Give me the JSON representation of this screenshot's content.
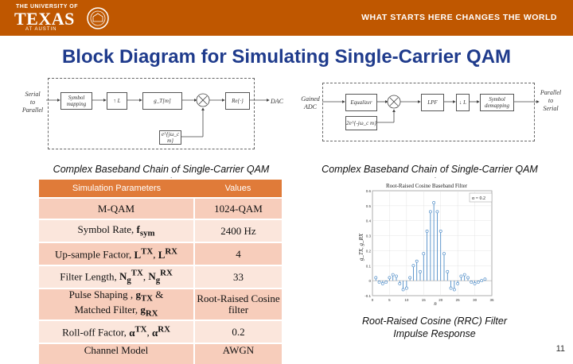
{
  "header": {
    "university_top": "THE UNIVERSITY OF",
    "university_main": "TEXAS",
    "university_sub": "AT AUSTIN",
    "slogan": "WHAT STARTS HERE CHANGES THE WORLD",
    "brand_color": "#bf5700"
  },
  "slide_title": "Block Diagram for Simulating Single-Carrier QAM",
  "tx_diagram": {
    "input_label_lines": [
      "Serial",
      "to",
      "Parallel"
    ],
    "blocks": [
      "Symbol mapping",
      "↑ L",
      "g_T[m]",
      "Re{·}"
    ],
    "carrier_label": "e^{jω_c m}",
    "output_label": "DAC"
  },
  "rx_diagram": {
    "input_label_lines": [
      "Gained",
      "ADC"
    ],
    "blocks": [
      "Equalizer",
      "LPF",
      "↓ L",
      "Symbol demapping"
    ],
    "carrier_label": "2e^{-jω_c m}",
    "output_label_lines": [
      "Parallel",
      "to",
      "Serial"
    ]
  },
  "tx_caption": "Complex Baseband Chain of Single-Carrier QAM Transmitter",
  "rx_caption": "Complex Baseband Chain of Single-Carrier QAM Receiver",
  "params_table": {
    "headers": [
      "Simulation Parameters",
      "Values"
    ],
    "rows": [
      {
        "param": "M-QAM",
        "value": "1024-QAM"
      },
      {
        "param": "Symbol Rate, f_sym",
        "value": "2400 Hz"
      },
      {
        "param": "Up-sample Factor, L^TX, L^RX",
        "value": "4"
      },
      {
        "param": "Filter Length, N_g^TX, N_g^RX",
        "value": "33"
      },
      {
        "param": "Pulse Shaping, g_TX & Matched Filter, g_RX",
        "value": "Root-Raised Cosine filter"
      },
      {
        "param": "Roll-off Factor, α^TX, α^RX",
        "value": "0.2"
      },
      {
        "param": "Channel Model",
        "value": "AWGN"
      }
    ]
  },
  "plot": {
    "title": "Root-Raised Cosine Baseband Filter",
    "ylabel": "g_TX, g_RX",
    "xlabel": "n",
    "legend": "α = 0.2"
  },
  "plot_caption": "Root-Raised Cosine (RRC) Filter Impulse Response",
  "page_number": "11",
  "chart_data": {
    "type": "stem",
    "title": "Root-Raised Cosine Baseband Filter",
    "xlabel": "n",
    "ylabel": "g_TX, g_RX",
    "legend": [
      "α = 0.2"
    ],
    "x": [
      1,
      2,
      3,
      4,
      5,
      6,
      7,
      8,
      9,
      10,
      11,
      12,
      13,
      14,
      15,
      16,
      17,
      18,
      19,
      20,
      21,
      22,
      23,
      24,
      25,
      26,
      27,
      28,
      29,
      30,
      31,
      32,
      33
    ],
    "values": [
      0.02,
      -0.01,
      -0.02,
      -0.01,
      0.02,
      0.04,
      0.03,
      -0.02,
      -0.06,
      -0.05,
      0.02,
      0.1,
      0.13,
      0.06,
      0.18,
      0.33,
      0.46,
      0.52,
      0.46,
      0.33,
      0.18,
      0.06,
      -0.05,
      -0.06,
      -0.02,
      0.03,
      0.04,
      0.02,
      -0.01,
      -0.02,
      -0.01,
      0.0,
      0.01
    ],
    "xlim": [
      0,
      35
    ],
    "ylim": [
      -0.1,
      0.6
    ],
    "xticks": [
      0,
      5,
      10,
      15,
      20,
      25,
      30,
      35
    ],
    "yticks": [
      -0.1,
      0,
      0.1,
      0.2,
      0.3,
      0.4,
      0.5,
      0.6
    ],
    "grid": true,
    "legend_position": "top-right"
  }
}
